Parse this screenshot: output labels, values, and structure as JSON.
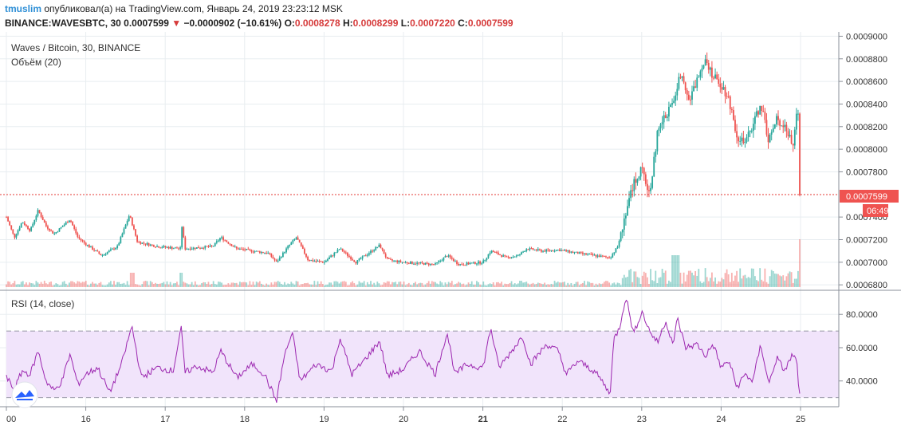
{
  "header": {
    "username": "tmuslim",
    "published_text": "опубликовал(а) на TradingView.com, Январь 24, 2019 23:23:12 MSK",
    "symbol_line": "BINANCE:WAVESBTC, 30",
    "last_price": "0.0007599",
    "change_arrow": "▼",
    "change": "−0.0000902 (−10.61%)",
    "open_label": "O:",
    "open": "0.0008278",
    "high_label": "H:",
    "high": "0.0008299",
    "low_label": "L:",
    "low": "0.0007220",
    "close_label": "C:",
    "close": "0.0007599"
  },
  "main_pane": {
    "title": "Waves / Bitcoin, 30, BINANCE",
    "volume_label": "Объём (20)",
    "price_badge": "0.0007599",
    "countdown_badge": "06:49"
  },
  "rsi_pane": {
    "title": "RSI (14, close)"
  },
  "colors": {
    "up": "#26a69a",
    "down": "#ef5350",
    "rsi_line": "#9c27b0",
    "rsi_band": "#f1e4fb",
    "grid": "#e8edf0",
    "username": "#2e8fd6"
  },
  "chart_data": [
    {
      "type": "candlestick",
      "title": "Waves / Bitcoin, 30, BINANCE",
      "x_axis": {
        "ticks": [
          "00",
          "16",
          "17",
          "18",
          "19",
          "20",
          "21",
          "22",
          "23",
          "24",
          "25"
        ],
        "range_days": [
          15,
          25
        ]
      },
      "y_axis": {
        "side": "right",
        "ticks": [
          "0.0009000",
          "0.0008800",
          "0.0008600",
          "0.0008400",
          "0.0008200",
          "0.0008000",
          "0.0007800",
          "0.0007400",
          "0.0007200",
          "0.0007000",
          "0.0006800"
        ],
        "range": [
          0.000678,
          0.000901
        ]
      },
      "last_price_line": 0.0007599,
      "grid": true,
      "close_path": [
        {
          "day": 15.0,
          "close": 0.00074
        },
        {
          "day": 15.1,
          "close": 0.000722
        },
        {
          "day": 15.2,
          "close": 0.000736
        },
        {
          "day": 15.3,
          "close": 0.000728
        },
        {
          "day": 15.4,
          "close": 0.000746
        },
        {
          "day": 15.5,
          "close": 0.000732
        },
        {
          "day": 15.6,
          "close": 0.000725
        },
        {
          "day": 15.8,
          "close": 0.000738
        },
        {
          "day": 15.9,
          "close": 0.000722
        },
        {
          "day": 16.0,
          "close": 0.000716
        },
        {
          "day": 16.2,
          "close": 0.000706
        },
        {
          "day": 16.4,
          "close": 0.000714
        },
        {
          "day": 16.55,
          "close": 0.000742
        },
        {
          "day": 16.65,
          "close": 0.000718
        },
        {
          "day": 16.9,
          "close": 0.000714
        },
        {
          "day": 17.2,
          "close": 0.000712
        },
        {
          "day": 17.21,
          "close": 0.000732
        },
        {
          "day": 17.25,
          "close": 0.000712
        },
        {
          "day": 17.6,
          "close": 0.000714
        },
        {
          "day": 17.7,
          "close": 0.000722
        },
        {
          "day": 17.9,
          "close": 0.000712
        },
        {
          "day": 18.1,
          "close": 0.00071
        },
        {
          "day": 18.3,
          "close": 0.000708
        },
        {
          "day": 18.4,
          "close": 0.0007
        },
        {
          "day": 18.55,
          "close": 0.000714
        },
        {
          "day": 18.65,
          "close": 0.000722
        },
        {
          "day": 18.8,
          "close": 0.000702
        },
        {
          "day": 19.0,
          "close": 0.0007
        },
        {
          "day": 19.2,
          "close": 0.000712
        },
        {
          "day": 19.4,
          "close": 0.0007
        },
        {
          "day": 19.7,
          "close": 0.000715
        },
        {
          "day": 19.8,
          "close": 0.000702
        },
        {
          "day": 20.0,
          "close": 0.0007
        },
        {
          "day": 20.4,
          "close": 0.000698
        },
        {
          "day": 20.55,
          "close": 0.000706
        },
        {
          "day": 20.7,
          "close": 0.000698
        },
        {
          "day": 21.0,
          "close": 0.0007
        },
        {
          "day": 21.1,
          "close": 0.00071
        },
        {
          "day": 21.3,
          "close": 0.000704
        },
        {
          "day": 21.45,
          "close": 0.000706
        },
        {
          "day": 21.55,
          "close": 0.000712
        },
        {
          "day": 21.75,
          "close": 0.00071
        },
        {
          "day": 21.95,
          "close": 0.000711
        },
        {
          "day": 22.2,
          "close": 0.000708
        },
        {
          "day": 22.4,
          "close": 0.000706
        },
        {
          "day": 22.6,
          "close": 0.000704
        },
        {
          "day": 22.7,
          "close": 0.000714
        },
        {
          "day": 22.8,
          "close": 0.000745
        },
        {
          "day": 22.9,
          "close": 0.00077
        },
        {
          "day": 23.0,
          "close": 0.000782
        },
        {
          "day": 23.1,
          "close": 0.00076
        },
        {
          "day": 23.2,
          "close": 0.000815
        },
        {
          "day": 23.3,
          "close": 0.00083
        },
        {
          "day": 23.4,
          "close": 0.000842
        },
        {
          "day": 23.5,
          "close": 0.00087
        },
        {
          "day": 23.6,
          "close": 0.000842
        },
        {
          "day": 23.7,
          "close": 0.000862
        },
        {
          "day": 23.8,
          "close": 0.000882
        },
        {
          "day": 23.9,
          "close": 0.000864
        },
        {
          "day": 24.0,
          "close": 0.000858
        },
        {
          "day": 24.1,
          "close": 0.000844
        },
        {
          "day": 24.2,
          "close": 0.000812
        },
        {
          "day": 24.3,
          "close": 0.000804
        },
        {
          "day": 24.4,
          "close": 0.000822
        },
        {
          "day": 24.5,
          "close": 0.00084
        },
        {
          "day": 24.6,
          "close": 0.000808
        },
        {
          "day": 24.7,
          "close": 0.000826
        },
        {
          "day": 24.8,
          "close": 0.000822
        },
        {
          "day": 24.9,
          "close": 0.000802
        },
        {
          "day": 24.95,
          "close": 0.00083
        },
        {
          "day": 24.97,
          "close": 0.000828
        },
        {
          "day": 24.99,
          "close": 0.00076
        }
      ]
    },
    {
      "type": "line",
      "title": "RSI (14, close)",
      "y_axis": {
        "ticks": [
          "80.0000",
          "60.0000",
          "40.0000"
        ],
        "range": [
          25,
          94
        ]
      },
      "bands": [
        70,
        30
      ],
      "series": [
        {
          "points": [
            {
              "day": 15.0,
              "value": 42
            },
            {
              "day": 15.1,
              "value": 35
            },
            {
              "day": 15.2,
              "value": 46
            },
            {
              "day": 15.3,
              "value": 44
            },
            {
              "day": 15.4,
              "value": 58
            },
            {
              "day": 15.5,
              "value": 40
            },
            {
              "day": 15.6,
              "value": 34
            },
            {
              "day": 15.7,
              "value": 40
            },
            {
              "day": 15.8,
              "value": 56
            },
            {
              "day": 15.9,
              "value": 38
            },
            {
              "day": 16.0,
              "value": 44
            },
            {
              "day": 16.15,
              "value": 48
            },
            {
              "day": 16.3,
              "value": 33
            },
            {
              "day": 16.45,
              "value": 50
            },
            {
              "day": 16.58,
              "value": 73
            },
            {
              "day": 16.7,
              "value": 42
            },
            {
              "day": 16.9,
              "value": 48
            },
            {
              "day": 17.1,
              "value": 46
            },
            {
              "day": 17.2,
              "value": 72
            },
            {
              "day": 17.25,
              "value": 45
            },
            {
              "day": 17.4,
              "value": 49
            },
            {
              "day": 17.6,
              "value": 45
            },
            {
              "day": 17.7,
              "value": 58
            },
            {
              "day": 17.9,
              "value": 42
            },
            {
              "day": 18.1,
              "value": 50
            },
            {
              "day": 18.25,
              "value": 44
            },
            {
              "day": 18.4,
              "value": 28
            },
            {
              "day": 18.5,
              "value": 55
            },
            {
              "day": 18.6,
              "value": 69
            },
            {
              "day": 18.7,
              "value": 40
            },
            {
              "day": 18.9,
              "value": 50
            },
            {
              "day": 19.1,
              "value": 46
            },
            {
              "day": 19.2,
              "value": 66
            },
            {
              "day": 19.35,
              "value": 44
            },
            {
              "day": 19.5,
              "value": 52
            },
            {
              "day": 19.7,
              "value": 64
            },
            {
              "day": 19.8,
              "value": 43
            },
            {
              "day": 20.0,
              "value": 47
            },
            {
              "day": 20.2,
              "value": 58
            },
            {
              "day": 20.4,
              "value": 44
            },
            {
              "day": 20.55,
              "value": 69
            },
            {
              "day": 20.65,
              "value": 44
            },
            {
              "day": 20.8,
              "value": 50
            },
            {
              "day": 21.0,
              "value": 48
            },
            {
              "day": 21.1,
              "value": 72
            },
            {
              "day": 21.2,
              "value": 48
            },
            {
              "day": 21.3,
              "value": 54
            },
            {
              "day": 21.5,
              "value": 67
            },
            {
              "day": 21.6,
              "value": 50
            },
            {
              "day": 21.8,
              "value": 62
            },
            {
              "day": 21.95,
              "value": 58
            },
            {
              "day": 22.05,
              "value": 44
            },
            {
              "day": 22.2,
              "value": 52
            },
            {
              "day": 22.4,
              "value": 46
            },
            {
              "day": 22.5,
              "value": 40
            },
            {
              "day": 22.6,
              "value": 32
            },
            {
              "day": 22.65,
              "value": 65
            },
            {
              "day": 22.72,
              "value": 72
            },
            {
              "day": 22.8,
              "value": 91
            },
            {
              "day": 22.9,
              "value": 68
            },
            {
              "day": 23.0,
              "value": 82
            },
            {
              "day": 23.1,
              "value": 70
            },
            {
              "day": 23.2,
              "value": 63
            },
            {
              "day": 23.3,
              "value": 76
            },
            {
              "day": 23.4,
              "value": 62
            },
            {
              "day": 23.45,
              "value": 78
            },
            {
              "day": 23.55,
              "value": 60
            },
            {
              "day": 23.7,
              "value": 62
            },
            {
              "day": 23.8,
              "value": 55
            },
            {
              "day": 23.9,
              "value": 62
            },
            {
              "day": 24.0,
              "value": 48
            },
            {
              "day": 24.1,
              "value": 52
            },
            {
              "day": 24.2,
              "value": 36
            },
            {
              "day": 24.3,
              "value": 44
            },
            {
              "day": 24.4,
              "value": 40
            },
            {
              "day": 24.5,
              "value": 62
            },
            {
              "day": 24.6,
              "value": 38
            },
            {
              "day": 24.7,
              "value": 54
            },
            {
              "day": 24.8,
              "value": 46
            },
            {
              "day": 24.9,
              "value": 56
            },
            {
              "day": 24.95,
              "value": 52
            },
            {
              "day": 24.99,
              "value": 31
            }
          ]
        }
      ]
    }
  ]
}
